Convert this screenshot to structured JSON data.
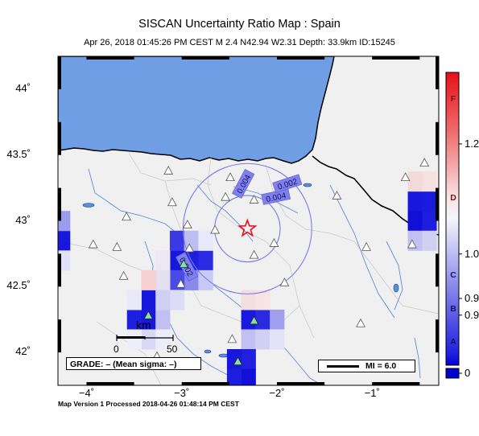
{
  "title": "SISCAN Uncertainty Ratio Map : Spain",
  "subtitle": "Apr 26, 2018 01:45:26 PM CEST   M 2.4   N42.94 W2.31   Depth: 33.9km   ID:15245",
  "footer": "Map Version 1 Processed 2018-04-26 01:48:14 PM CEST",
  "grade_text": "GRADE: – (Mean sigma: –)",
  "legend_mi": "MI = 6.0",
  "scale_bar": {
    "unit": "km",
    "start": "0",
    "end": "50"
  },
  "axes": {
    "lat_labels": [
      {
        "text": "44˚",
        "value": 44.0
      },
      {
        "text": "43.5˚",
        "value": 43.5
      },
      {
        "text": "43˚",
        "value": 43.0
      },
      {
        "text": "42.5˚",
        "value": 42.5
      },
      {
        "text": "42˚",
        "value": 42.0
      }
    ],
    "lon_labels": [
      {
        "text": "−4˚",
        "value": -4.0
      },
      {
        "text": "−3˚",
        "value": -3.0
      },
      {
        "text": "−2˚",
        "value": -2.0
      },
      {
        "text": "−1˚",
        "value": -1.0
      }
    ],
    "lon_range": [
      -4.3,
      -0.3
    ],
    "lat_range": [
      41.75,
      44.25
    ]
  },
  "epicenter": {
    "lon": -2.31,
    "lat": 42.94,
    "color": "#e8101a"
  },
  "contours": [
    {
      "label": "0.004",
      "radius_km": 28
    },
    {
      "label": "0.002",
      "radius_km": 55
    }
  ],
  "contour_labels": [
    {
      "text": "0.004",
      "lon": -2.35,
      "lat": 43.28,
      "angle": -62
    },
    {
      "text": "0.004",
      "lon": -2.01,
      "lat": 43.18,
      "angle": -12
    },
    {
      "text": "0.002",
      "lon": -1.89,
      "lat": 43.28,
      "angle": -18
    },
    {
      "text": "0.002",
      "lon": -2.95,
      "lat": 42.65,
      "angle": 62
    }
  ],
  "stations": [
    {
      "lon": -3.14,
      "lat": 43.38
    },
    {
      "lon": -2.49,
      "lat": 43.33
    },
    {
      "lon": -2.54,
      "lat": 43.18
    },
    {
      "lon": -2.24,
      "lat": 43.16
    },
    {
      "lon": -3.1,
      "lat": 43.14
    },
    {
      "lon": -3.58,
      "lat": 43.03
    },
    {
      "lon": -3.68,
      "lat": 42.8
    },
    {
      "lon": -3.93,
      "lat": 42.82
    },
    {
      "lon": -2.94,
      "lat": 42.97
    },
    {
      "lon": -2.92,
      "lat": 42.79
    },
    {
      "lon": -2.65,
      "lat": 42.93
    },
    {
      "lon": -2.03,
      "lat": 42.83
    },
    {
      "lon": -2.24,
      "lat": 42.74
    },
    {
      "lon": -3.61,
      "lat": 42.58
    },
    {
      "lon": -3.01,
      "lat": 42.52
    },
    {
      "lon": -1.92,
      "lat": 42.53
    },
    {
      "lon": -1.12,
      "lat": 42.22
    },
    {
      "lon": -2.47,
      "lat": 42.1
    },
    {
      "lon": -3.26,
      "lat": 41.97
    },
    {
      "lon": -0.45,
      "lat": 43.44
    },
    {
      "lon": -1.37,
      "lat": 43.19
    },
    {
      "lon": -1.06,
      "lat": 42.8
    },
    {
      "lon": -0.58,
      "lat": 42.82
    },
    {
      "lon": -0.65,
      "lat": 43.33
    }
  ],
  "stations_used": [
    {
      "lon": -2.98,
      "lat": 42.67
    },
    {
      "lon": -3.35,
      "lat": 42.28
    },
    {
      "lon": -2.24,
      "lat": 42.24
    },
    {
      "lon": -2.41,
      "lat": 41.93
    }
  ],
  "grid_cells": [
    {
      "lon": -2.9,
      "lat": 42.7,
      "color": "#1f1fe0"
    },
    {
      "lon": -2.9,
      "lat": 42.55,
      "color": "#8a8aeb"
    },
    {
      "lon": -2.75,
      "lat": 42.7,
      "color": "#2a2ae2"
    },
    {
      "lon": -3.05,
      "lat": 42.7,
      "color": "#1717dd"
    },
    {
      "lon": -3.05,
      "lat": 42.85,
      "color": "#3a3ae5"
    },
    {
      "lon": -3.05,
      "lat": 42.55,
      "color": "#4a4ae7"
    },
    {
      "lon": -2.9,
      "lat": 42.85,
      "color": "#bdbdf2"
    },
    {
      "lon": -2.75,
      "lat": 42.55,
      "color": "#c9c9f5"
    },
    {
      "lon": -2.75,
      "lat": 42.85,
      "color": "#e8e8fa"
    },
    {
      "lon": -3.05,
      "lat": 42.4,
      "color": "#dcdcf6"
    },
    {
      "lon": -3.2,
      "lat": 42.7,
      "color": "#ebe8f3"
    },
    {
      "lon": -3.2,
      "lat": 42.55,
      "color": "#e4e0ef"
    },
    {
      "lon": -3.35,
      "lat": 42.4,
      "color": "#1717dd"
    },
    {
      "lon": -3.5,
      "lat": 42.25,
      "color": "#1f1fe0"
    },
    {
      "lon": -3.35,
      "lat": 42.25,
      "color": "#1717dd"
    },
    {
      "lon": -3.2,
      "lat": 42.25,
      "color": "#c0c0f2"
    },
    {
      "lon": -3.2,
      "lat": 42.4,
      "color": "#d0d0f3"
    },
    {
      "lon": -3.35,
      "lat": 42.55,
      "color": "#f6d0d0"
    },
    {
      "lon": -3.5,
      "lat": 42.4,
      "color": "#e8e8f8"
    },
    {
      "lon": -3.35,
      "lat": 42.1,
      "color": "#d8d8f5"
    },
    {
      "lon": -3.2,
      "lat": 42.1,
      "color": "#ececfa"
    },
    {
      "lon": -3.5,
      "lat": 42.1,
      "color": "#eeeefa"
    },
    {
      "lon": -2.3,
      "lat": 42.25,
      "color": "#1a1ade"
    },
    {
      "lon": -2.15,
      "lat": 42.25,
      "color": "#2a2ae2"
    },
    {
      "lon": -2.0,
      "lat": 42.25,
      "color": "#9f9fee"
    },
    {
      "lon": -2.3,
      "lat": 42.1,
      "color": "#c0c0f2"
    },
    {
      "lon": -2.15,
      "lat": 42.1,
      "color": "#d0d0f3"
    },
    {
      "lon": -2.0,
      "lat": 42.1,
      "color": "#e2e2f8"
    },
    {
      "lon": -2.3,
      "lat": 42.4,
      "color": "#f3dede"
    },
    {
      "lon": -2.15,
      "lat": 42.4,
      "color": "#f6e4e4"
    },
    {
      "lon": -2.3,
      "lat": 41.95,
      "color": "#2020e0"
    },
    {
      "lon": -2.45,
      "lat": 41.95,
      "color": "#1717dd"
    },
    {
      "lon": -2.3,
      "lat": 41.8,
      "color": "#1010d8"
    },
    {
      "lon": -2.45,
      "lat": 41.8,
      "color": "#1d1ddf"
    },
    {
      "lon": -0.55,
      "lat": 43.15,
      "color": "#1717dd"
    },
    {
      "lon": -0.4,
      "lat": 43.15,
      "color": "#1a1ade"
    },
    {
      "lon": -0.55,
      "lat": 43.0,
      "color": "#1010d8"
    },
    {
      "lon": -0.4,
      "lat": 43.0,
      "color": "#1d1ddf"
    },
    {
      "lon": -0.55,
      "lat": 43.3,
      "color": "#f3dada"
    },
    {
      "lon": -0.4,
      "lat": 43.3,
      "color": "#f6e0e0"
    },
    {
      "lon": -0.55,
      "lat": 42.85,
      "color": "#c0c0f2"
    },
    {
      "lon": -0.4,
      "lat": 42.85,
      "color": "#d0d0f3"
    },
    {
      "lon": -4.25,
      "lat": 42.85,
      "color": "#1717dd"
    },
    {
      "lon": -4.25,
      "lat": 43.0,
      "color": "#9c9cee"
    },
    {
      "lon": -4.25,
      "lat": 42.7,
      "color": "#e0e0f7"
    }
  ],
  "colorbar": {
    "labels": [
      {
        "text": "1.2",
        "value": 1.2
      },
      {
        "text": "1.0",
        "value": 1.0
      },
      {
        "text": "0.9",
        "value": 0.92
      },
      {
        "text": "0.9",
        "value": 0.89
      },
      {
        "text": "0",
        "value": 0.0
      }
    ],
    "letters": [
      {
        "text": "F",
        "value": 1.28
      },
      {
        "text": "D",
        "value": 1.1
      },
      {
        "text": "C",
        "value": 0.96
      },
      {
        "text": "B",
        "value": 0.9
      },
      {
        "text": "A",
        "value": 0.84
      }
    ]
  },
  "colors": {
    "sea": "#6f9ee4",
    "land": "#f0f0f0",
    "rivers": "#5b8fd6",
    "contour": "#7a7ae8",
    "station": "#ffffff",
    "station_used": "#7fe3a8"
  }
}
